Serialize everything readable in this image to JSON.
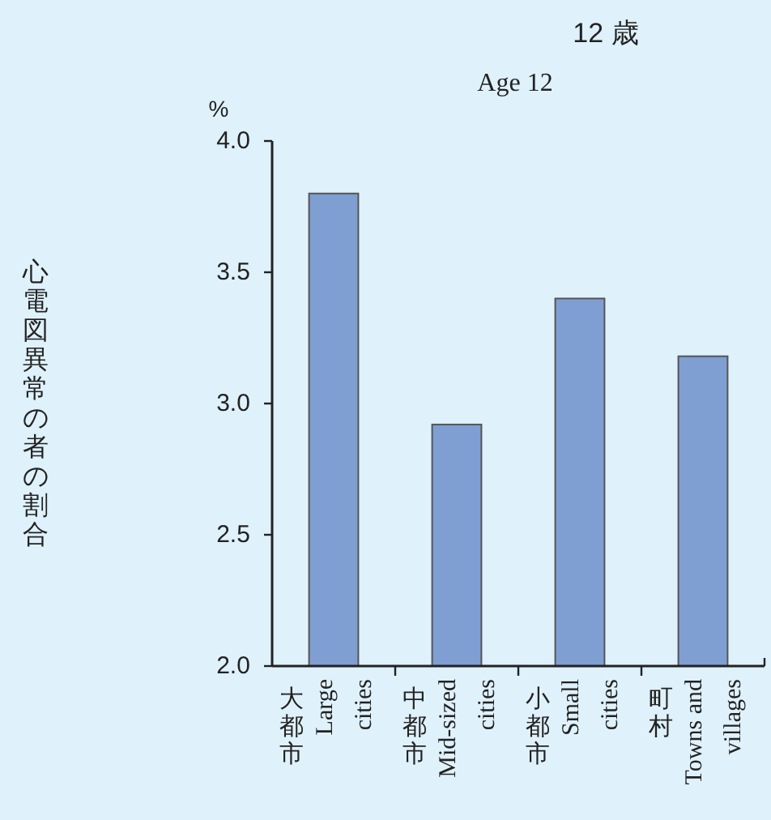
{
  "chart_data": {
    "type": "bar",
    "title": "12 歳",
    "subtitle": "Age 12",
    "ylabel": "心電図異常の者の割合",
    "annotations": [
      "%"
    ],
    "categories": [
      "大都市\nLarge\ncities",
      "中都市\nMid-sized\ncities",
      "小都市\nSmall\ncities",
      "町村\nTowns and\nvillages"
    ],
    "values": [
      3.8,
      2.92,
      3.4,
      3.18
    ],
    "color": "#7f9fd3",
    "ylim": [
      2.0,
      4.0
    ],
    "yticks": [
      {
        "value": 2.0,
        "label": "2.0"
      },
      {
        "value": 2.5,
        "label": "2.5"
      },
      {
        "value": 3.0,
        "label": "3.0"
      },
      {
        "value": 3.5,
        "label": "3.5"
      },
      {
        "value": 4.0,
        "label": "4.0"
      }
    ],
    "grid": false
  }
}
